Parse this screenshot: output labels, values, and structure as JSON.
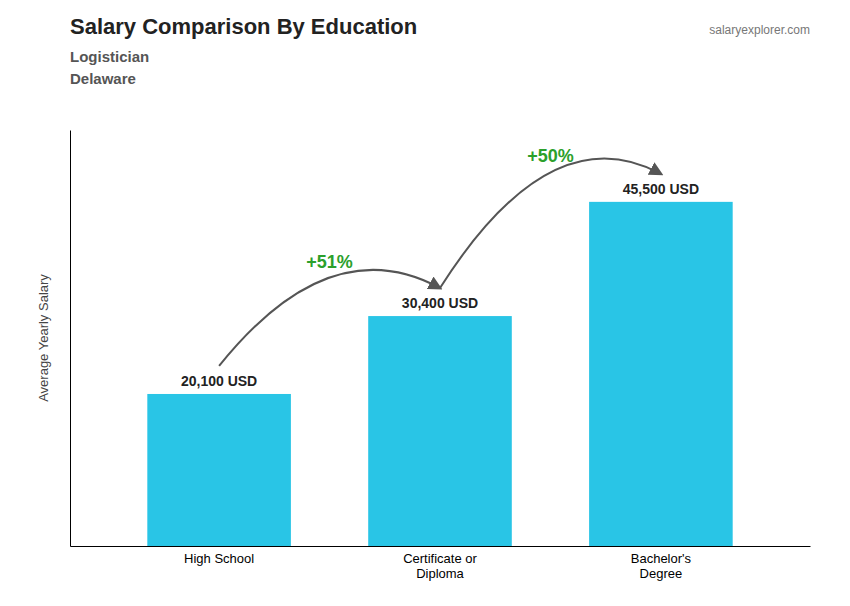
{
  "chart_data": {
    "type": "bar",
    "title": "Salary Comparison By Education",
    "subtitle": [
      "Logistician",
      "Delaware"
    ],
    "caption": "salaryexplorer.com",
    "ylabel": "Average Yearly Salary",
    "categories": [
      "High School",
      "Certificate or\nDiploma",
      "Bachelor's\nDegree"
    ],
    "values": [
      20100,
      30400,
      45500
    ],
    "value_labels": [
      "20,100 USD",
      "30,400 USD",
      "45,500 USD"
    ],
    "data_labels": true,
    "annotations": [
      "+51%",
      "+50%"
    ],
    "color": "#29c5e6",
    "ylim": [
      0,
      55000
    ],
    "tick_labels": "x",
    "grid": false
  }
}
